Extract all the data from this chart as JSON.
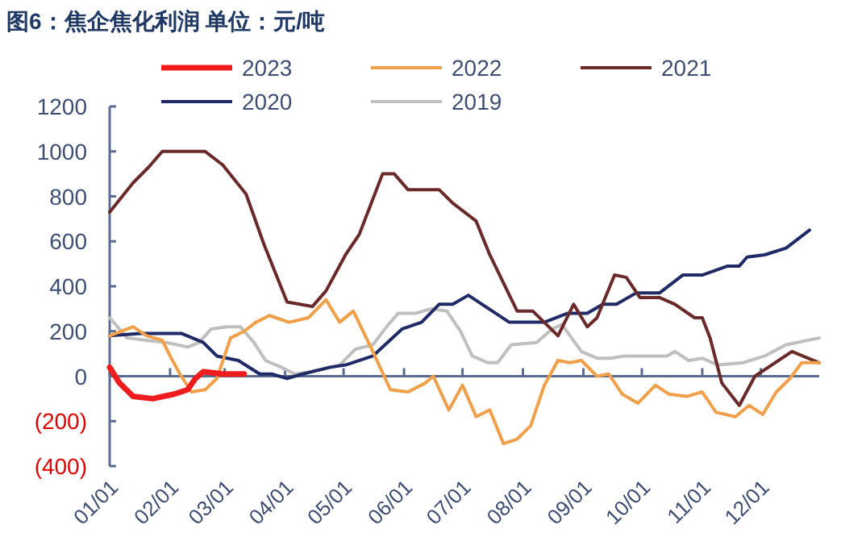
{
  "chart_data": {
    "type": "line",
    "title": "图6：焦企焦化利润  单位：元/吨",
    "xlim": [
      "--01-01",
      "--12-31"
    ],
    "xticks": [
      {
        "value": "--01-01",
        "label": "01/01"
      },
      {
        "value": "--02-01",
        "label": "02/01"
      },
      {
        "value": "--03-01",
        "label": "03/01"
      },
      {
        "value": "--04-01",
        "label": "04/01"
      },
      {
        "value": "--05-01",
        "label": "05/01"
      },
      {
        "value": "--06-01",
        "label": "06/01"
      },
      {
        "value": "--07-01",
        "label": "07/01"
      },
      {
        "value": "--08-01",
        "label": "08/01"
      },
      {
        "value": "--09-01",
        "label": "09/01"
      },
      {
        "value": "--10-01",
        "label": "10/01"
      },
      {
        "value": "--11-01",
        "label": "11/01"
      },
      {
        "value": "--12-01",
        "label": "12/01"
      }
    ],
    "ylim": [
      -400,
      1200
    ],
    "yticks": [
      {
        "value": -400,
        "label": "(400)"
      },
      {
        "value": -200,
        "label": "(200)"
      },
      0,
      200,
      400,
      600,
      800,
      1000,
      1200
    ],
    "legend": "top",
    "ref_lines": [
      {
        "axis": "y",
        "value": 0,
        "color": "#5b6b8f"
      }
    ],
    "series": [
      {
        "name": "2023",
        "color": "#ee1c1c",
        "x": [
          "--01-01",
          "--01-06",
          "--01-13",
          "--01-23",
          "--02-03",
          "--02-10",
          "--02-14",
          "--02-18",
          "--02-28",
          "--03-11"
        ],
        "values": [
          40,
          -30,
          -90,
          -100,
          -80,
          -60,
          -10,
          20,
          10,
          10
        ]
      },
      {
        "name": "2022",
        "color": "#f0a04b",
        "x": [
          "--01-01",
          "--01-13",
          "--01-20",
          "--01-28",
          "--02-01",
          "--02-06",
          "--02-12",
          "--02-19",
          "--02-25",
          "--03-04",
          "--03-11",
          "--03-17",
          "--03-24",
          "--04-03",
          "--04-13",
          "--04-22",
          "--04-29",
          "--05-06",
          "--05-16",
          "--05-25",
          "--06-03",
          "--06-12",
          "--06-16",
          "--06-24",
          "--07-01",
          "--07-08",
          "--07-15",
          "--07-22",
          "--07-29",
          "--08-05",
          "--08-12",
          "--08-19",
          "--08-25",
          "--08-31",
          "--09-08",
          "--09-14",
          "--09-21",
          "--09-29",
          "--10-08",
          "--10-15",
          "--10-24",
          "--11-01",
          "--11-08",
          "--11-18",
          "--11-25",
          "--12-02",
          "--12-09",
          "--12-16",
          "--12-22",
          "--12-31"
        ],
        "values": [
          180,
          220,
          180,
          160,
          90,
          10,
          -70,
          -60,
          -10,
          170,
          200,
          240,
          270,
          240,
          260,
          340,
          240,
          290,
          110,
          -60,
          -70,
          -30,
          0,
          -150,
          -40,
          -180,
          -150,
          -300,
          -280,
          -220,
          -40,
          70,
          60,
          70,
          0,
          10,
          -80,
          -120,
          -40,
          -80,
          -90,
          -70,
          -160,
          -180,
          -130,
          -170,
          -70,
          -10,
          60,
          60
        ]
      },
      {
        "name": "2021",
        "color": "#6b2a2a",
        "x": [
          "--01-01",
          "--01-13",
          "--01-21",
          "--01-28",
          "--02-06",
          "--02-19",
          "--02-28",
          "--03-12",
          "--03-21",
          "--04-02",
          "--04-15",
          "--04-22",
          "--05-02",
          "--05-09",
          "--05-21",
          "--05-27",
          "--06-03",
          "--06-10",
          "--06-19",
          "--06-26",
          "--07-08",
          "--07-15",
          "--07-29",
          "--08-06",
          "--08-19",
          "--08-27",
          "--09-03",
          "--09-08",
          "--09-17",
          "--09-23",
          "--09-30",
          "--10-10",
          "--10-18",
          "--10-28",
          "--11-01",
          "--11-05",
          "--11-11",
          "--11-20",
          "--11-28",
          "--12-17",
          "--12-31"
        ],
        "values": [
          730,
          860,
          930,
          1000,
          1000,
          1000,
          940,
          810,
          590,
          330,
          310,
          380,
          540,
          630,
          900,
          900,
          830,
          830,
          830,
          770,
          690,
          540,
          290,
          290,
          180,
          320,
          220,
          260,
          450,
          440,
          350,
          350,
          320,
          260,
          260,
          170,
          -30,
          -130,
          0,
          110,
          60
        ]
      },
      {
        "name": "2020",
        "color": "#1f2a66",
        "x": [
          "--01-01",
          "--01-17",
          "--02-07",
          "--02-18",
          "--02-25",
          "--03-08",
          "--03-19",
          "--03-25",
          "--04-02",
          "--04-10",
          "--04-24",
          "--05-02",
          "--05-16",
          "--05-31",
          "--06-10",
          "--06-19",
          "--06-26",
          "--07-04",
          "--07-25",
          "--08-12",
          "--08-24",
          "--09-03",
          "--09-11",
          "--09-18",
          "--09-28",
          "--10-10",
          "--10-22",
          "--11-01",
          "--11-14",
          "--11-20",
          "--11-24",
          "--12-03",
          "--12-14",
          "--12-26"
        ],
        "values": [
          180,
          190,
          190,
          150,
          90,
          70,
          10,
          10,
          -10,
          10,
          40,
          50,
          90,
          210,
          240,
          320,
          320,
          360,
          240,
          240,
          280,
          280,
          320,
          320,
          370,
          370,
          450,
          450,
          490,
          490,
          530,
          540,
          570,
          650
        ]
      },
      {
        "name": "2019",
        "color": "#bfbfbf",
        "x": [
          "--01-01",
          "--01-10",
          "--01-20",
          "--01-30",
          "--02-10",
          "--02-16",
          "--02-22",
          "--03-02",
          "--03-09",
          "--03-16",
          "--03-22",
          "--03-30",
          "--04-06",
          "--04-15",
          "--04-25",
          "--04-29",
          "--05-07",
          "--05-16",
          "--05-24",
          "--05-29",
          "--06-07",
          "--06-15",
          "--06-23",
          "--06-30",
          "--07-06",
          "--07-14",
          "--07-19",
          "--07-26",
          "--08-08",
          "--08-16",
          "--08-21",
          "--08-31",
          "--09-08",
          "--09-15",
          "--09-22",
          "--10-14",
          "--10-18",
          "--10-25",
          "--11-01",
          "--11-09",
          "--11-22",
          "--12-03",
          "--12-14",
          "--12-31"
        ],
        "values": [
          260,
          170,
          160,
          150,
          130,
          150,
          210,
          220,
          220,
          150,
          70,
          40,
          10,
          20,
          40,
          50,
          120,
          140,
          230,
          280,
          280,
          300,
          290,
          200,
          90,
          60,
          60,
          140,
          150,
          210,
          230,
          110,
          80,
          80,
          90,
          90,
          110,
          70,
          80,
          50,
          60,
          90,
          140,
          170
        ]
      }
    ]
  }
}
